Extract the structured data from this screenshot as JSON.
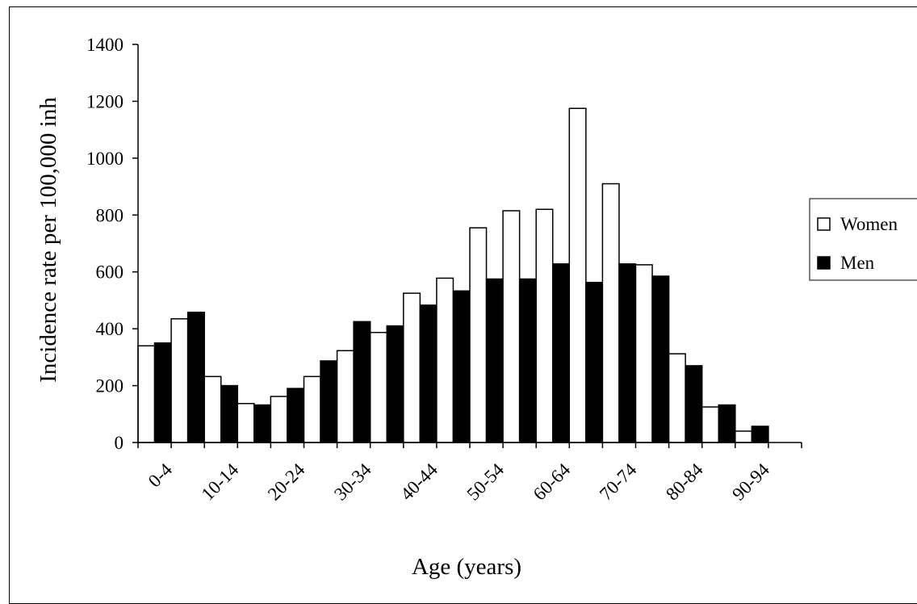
{
  "chart_data": {
    "type": "bar",
    "title": "",
    "xlabel": "Age (years)",
    "ylabel": "Incidence rate per 100,000 inh",
    "ylim": [
      0,
      1400
    ],
    "yticks": [
      0,
      200,
      400,
      600,
      800,
      1000,
      1200,
      1400
    ],
    "categories": [
      "0-4",
      "5-9",
      "10-14",
      "15-19",
      "20-24",
      "25-29",
      "30-34",
      "35-39",
      "40-44",
      "45-49",
      "50-54",
      "55-59",
      "60-64",
      "65-69",
      "70-74",
      "75-79",
      "80-84",
      "85-89",
      "90-94",
      "95+"
    ],
    "x_tick_labels": [
      "0-4",
      "10-14",
      "20-24",
      "30-34",
      "40-44",
      "50-54",
      "60-64",
      "70-74",
      "80-84",
      "90-94"
    ],
    "series": [
      {
        "name": "Women",
        "color": "#ffffff",
        "values": [
          340,
          435,
          232,
          137,
          162,
          232,
          323,
          387,
          525,
          578,
          755,
          815,
          820,
          1175,
          910,
          625,
          312,
          125,
          40,
          0
        ]
      },
      {
        "name": "Men",
        "color": "#000000",
        "values": [
          350,
          458,
          200,
          132,
          190,
          287,
          425,
          410,
          483,
          533,
          575,
          575,
          628,
          563,
          628,
          585,
          270,
          132,
          57,
          0
        ]
      }
    ],
    "grid": false,
    "legend": "right"
  }
}
